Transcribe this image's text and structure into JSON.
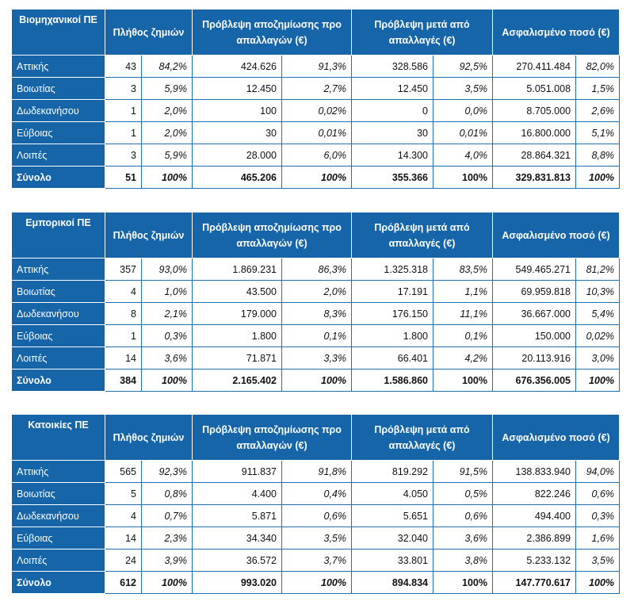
{
  "tables": [
    {
      "category": "Βιομηχανικοί ΠΕ",
      "headers": [
        "Πλήθος ζημιών",
        "Πρόβλεψη αποζημίωσης προ απαλλαγών (€)",
        "Πρόβλεψη μετά από απαλλαγές (€)",
        "Ασφαλισμένο ποσό (€)"
      ],
      "rows": [
        {
          "region": "Αττικής",
          "count": "43",
          "count_pct": "84,2%",
          "pre": "424.626",
          "pre_pct": "91,3%",
          "post": "328.586",
          "post_pct": "92,5%",
          "insured": "270.411.484",
          "insured_pct": "82,0%"
        },
        {
          "region": "Βοιωτίας",
          "count": "3",
          "count_pct": "5,9%",
          "pre": "12.450",
          "pre_pct": "2,7%",
          "post": "12.450",
          "post_pct": "3,5%",
          "insured": "5.051.008",
          "insured_pct": "1,5%"
        },
        {
          "region": "Δωδεκανήσου",
          "count": "1",
          "count_pct": "2,0%",
          "pre": "100",
          "pre_pct": "0,02%",
          "post": "0",
          "post_pct": "0,0%",
          "insured": "8.705.000",
          "insured_pct": "2,6%"
        },
        {
          "region": "Εύβοιας",
          "count": "1",
          "count_pct": "2,0%",
          "pre": "30",
          "pre_pct": "0,01%",
          "post": "30",
          "post_pct": "0,01%",
          "insured": "16.800.000",
          "insured_pct": "5,1%"
        },
        {
          "region": "Λοιπές",
          "count": "3",
          "count_pct": "5,9%",
          "pre": "28.000",
          "pre_pct": "6,0%",
          "post": "14.300",
          "post_pct": "4,0%",
          "insured": "28.864.321",
          "insured_pct": "8,8%"
        }
      ],
      "total": {
        "region": "Σύνολο",
        "count": "51",
        "count_pct": "100%",
        "pre": "465.206",
        "pre_pct": "100%",
        "post": "355.366",
        "post_pct": "100%",
        "insured": "329.831.813",
        "insured_pct": "100%"
      }
    },
    {
      "category": "Εμπορικοί ΠΕ",
      "headers": [
        "Πλήθος ζημιών",
        "Πρόβλεψη αποζημίωσης προ απαλλαγών (€)",
        "Πρόβλεψη μετά από απαλλαγές (€)",
        "Ασφαλισμένο ποσό (€)"
      ],
      "rows": [
        {
          "region": "Αττικής",
          "count": "357",
          "count_pct": "93,0%",
          "pre": "1.869.231",
          "pre_pct": "86,3%",
          "post": "1.325.318",
          "post_pct": "83,5%",
          "insured": "549.465.271",
          "insured_pct": "81,2%"
        },
        {
          "region": "Βοιωτίας",
          "count": "4",
          "count_pct": "1,0%",
          "pre": "43.500",
          "pre_pct": "2,0%",
          "post": "17.191",
          "post_pct": "1,1%",
          "insured": "69.959.818",
          "insured_pct": "10,3%"
        },
        {
          "region": "Δωδεκανήσου",
          "count": "8",
          "count_pct": "2,1%",
          "pre": "179.000",
          "pre_pct": "8,3%",
          "post": "176.150",
          "post_pct": "11,1%",
          "insured": "36.667.000",
          "insured_pct": "5,4%"
        },
        {
          "region": "Εύβοιας",
          "count": "1",
          "count_pct": "0,3%",
          "pre": "1.800",
          "pre_pct": "0,1%",
          "post": "1.800",
          "post_pct": "0,1%",
          "insured": "150.000",
          "insured_pct": "0,02%"
        },
        {
          "region": "Λοιπές",
          "count": "14",
          "count_pct": "3,6%",
          "pre": "71.871",
          "pre_pct": "3,3%",
          "post": "66.401",
          "post_pct": "4,2%",
          "insured": "20.113.916",
          "insured_pct": "3,0%"
        }
      ],
      "total": {
        "region": "Σύνολο",
        "count": "384",
        "count_pct": "100%",
        "pre": "2.165.402",
        "pre_pct": "100%",
        "post": "1.586.860",
        "post_pct": "100%",
        "insured": "676.356.005",
        "insured_pct": "100%"
      }
    },
    {
      "category": "Κατοικίες ΠΕ",
      "headers": [
        "Πλήθος ζημιών",
        "Πρόβλεψη αποζημίωσης προ απαλλαγών (€)",
        "Πρόβλεψη μετά από απαλλαγές (€)",
        "Ασφαλισμένο ποσό (€)"
      ],
      "rows": [
        {
          "region": "Αττικής",
          "count": "565",
          "count_pct": "92,3%",
          "pre": "911.837",
          "pre_pct": "91,8%",
          "post": "819.292",
          "post_pct": "91,5%",
          "insured": "138.833.940",
          "insured_pct": "94,0%"
        },
        {
          "region": "Βοιωτίας",
          "count": "5",
          "count_pct": "0,8%",
          "pre": "4.400",
          "pre_pct": "0,4%",
          "post": "4.050",
          "post_pct": "0,5%",
          "insured": "822.246",
          "insured_pct": "0,6%"
        },
        {
          "region": "Δωδεκανήσου",
          "count": "4",
          "count_pct": "0,7%",
          "pre": "5.871",
          "pre_pct": "0,6%",
          "post": "5.651",
          "post_pct": "0,6%",
          "insured": "494.400",
          "insured_pct": "0,3%"
        },
        {
          "region": "Εύβοιας",
          "count": "14",
          "count_pct": "2,3%",
          "pre": "34.340",
          "pre_pct": "3,5%",
          "post": "32.040",
          "post_pct": "3,6%",
          "insured": "2.386.899",
          "insured_pct": "1,6%"
        },
        {
          "region": "Λοιπές",
          "count": "24",
          "count_pct": "3,9%",
          "pre": "36.572",
          "pre_pct": "3,7%",
          "post": "33.801",
          "post_pct": "3,8%",
          "insured": "5.233.132",
          "insured_pct": "3,5%"
        }
      ],
      "total": {
        "region": "Σύνολο",
        "count": "612",
        "count_pct": "100%",
        "pre": "993.020",
        "pre_pct": "100%",
        "post": "894.834",
        "post_pct": "100%",
        "insured": "147.770.617",
        "insured_pct": "100%"
      }
    }
  ]
}
